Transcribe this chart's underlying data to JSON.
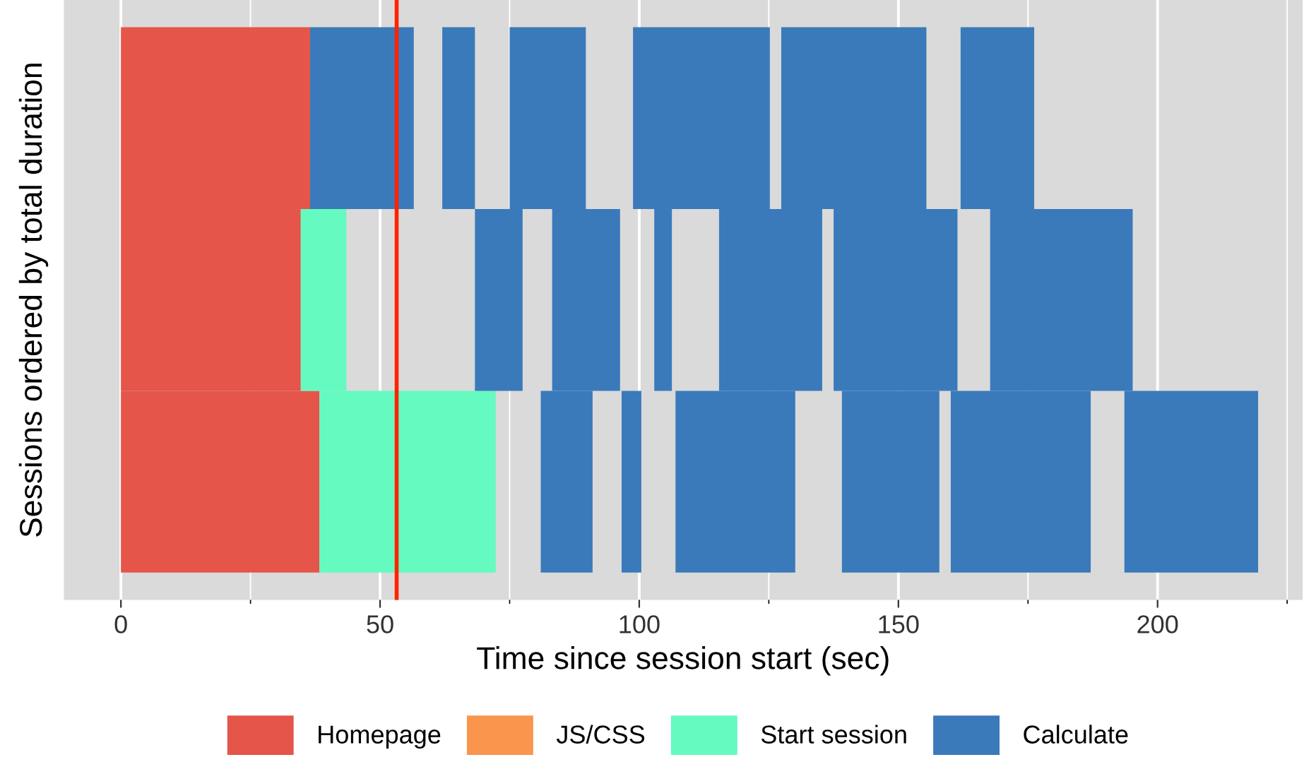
{
  "chart_data": {
    "type": "bar",
    "orientation": "horizontal",
    "xlabel": "Time since session start (sec)",
    "ylabel": "Sessions ordered by total duration",
    "categories": [
      null,
      null,
      null
    ],
    "xlim": [
      -11,
      228
    ],
    "xticks": [
      0,
      50,
      100,
      150,
      200
    ],
    "grid": true,
    "legend": "bottom",
    "tick_labels": "x",
    "ref_lines": [
      {
        "axis": "x",
        "value": 53.2,
        "color": "#ff2200"
      }
    ],
    "series": [
      {
        "name": "Homepage",
        "color": "#e5554a",
        "base": [
          0,
          0,
          0
        ],
        "values": [
          36.5,
          34.7,
          38.3
        ]
      },
      {
        "name": "JS/CSS",
        "color": "#f9954d",
        "base": [
          null,
          null,
          null
        ],
        "values": [
          null,
          null,
          null
        ]
      },
      {
        "name": "Start session",
        "color": "#64fac0",
        "base": [
          null,
          34.7,
          38.3
        ],
        "values": [
          null,
          8.8,
          34.0
        ]
      },
      {
        "name": "Calculate",
        "color": "#3a7abb",
        "base": [
          36.5,
          68.3,
          81.0
        ],
        "values": [
          20.0,
          9.2,
          10.0
        ]
      },
      {
        "color": "#3a7abb",
        "base": [
          62.0,
          83.2,
          96.6
        ],
        "values": [
          6.3,
          13.1,
          3.8
        ]
      },
      {
        "color": "#3a7abb",
        "base": [
          75.0,
          102.9,
          107.0
        ],
        "values": [
          14.7,
          3.4,
          23.1
        ]
      },
      {
        "color": "#3a7abb",
        "base": [
          98.8,
          115.4,
          139.1
        ],
        "values": [
          26.4,
          19.9,
          18.8
        ]
      },
      {
        "color": "#3a7abb",
        "base": [
          127.4,
          137.5,
          160.1
        ],
        "values": [
          28.0,
          23.9,
          27.0
        ]
      },
      {
        "color": "#3a7abb",
        "base": [
          162.0,
          167.7,
          193.6
        ],
        "values": [
          14.2,
          27.5,
          25.8
        ]
      },
      {
        "color": "#3a7abb",
        "base": [
          null,
          null,
          null
        ],
        "values": [
          null,
          null,
          null
        ]
      }
    ]
  }
}
